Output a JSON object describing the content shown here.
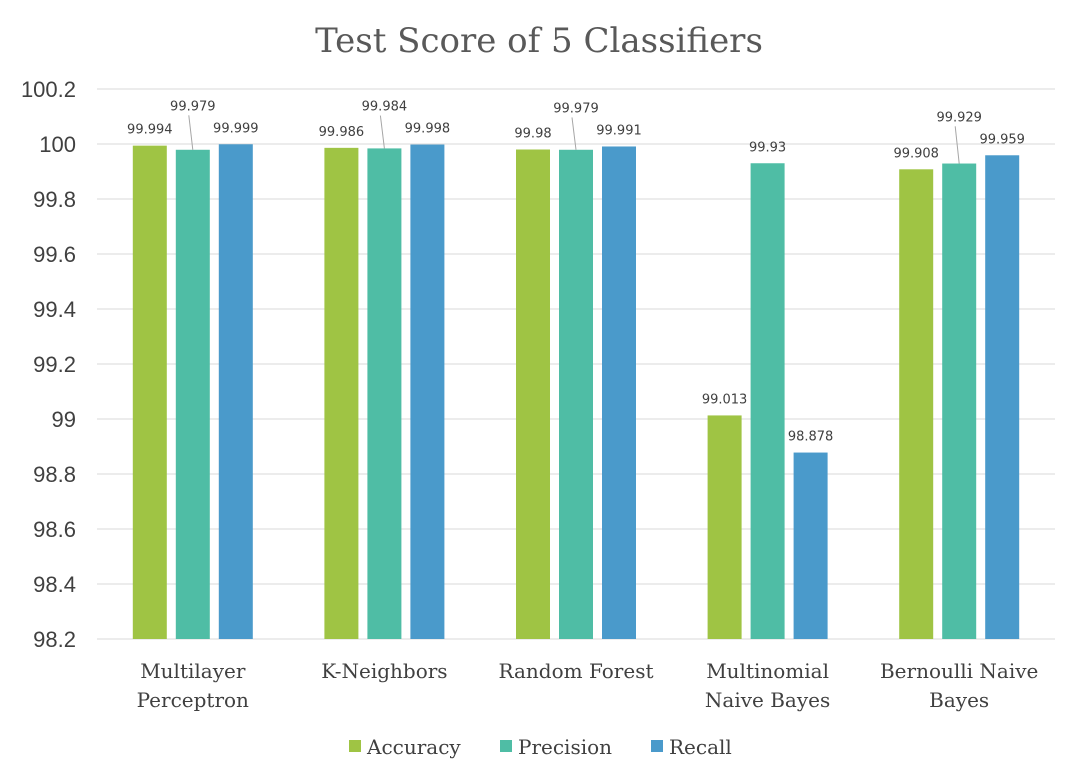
{
  "chart_data": {
    "type": "bar",
    "title": "Test Score of 5 Classifiers",
    "categories": [
      [
        "Multilayer",
        "Perceptron"
      ],
      [
        "K-Neighbors"
      ],
      [
        "Random Forest"
      ],
      [
        "Multinomial",
        "Naive Bayes"
      ],
      [
        "Bernoulli Naive",
        "Bayes"
      ]
    ],
    "series": [
      {
        "name": "Accuracy",
        "color": "#9fc444",
        "values": [
          99.994,
          99.986,
          99.98,
          99.013,
          99.908
        ],
        "labels": [
          "99.994",
          "99.986",
          "99.98",
          "99.013",
          "99.908"
        ]
      },
      {
        "name": "Precision",
        "color": "#4fbda5",
        "values": [
          99.979,
          99.984,
          99.979,
          99.93,
          99.929
        ],
        "labels": [
          "99.979",
          "99.984",
          "99.979",
          "99.93",
          "99.929"
        ]
      },
      {
        "name": "Recall",
        "color": "#4a9acb",
        "values": [
          99.999,
          99.998,
          99.991,
          98.878,
          99.959
        ],
        "labels": [
          "99.999",
          "99.998",
          "99.991",
          "98.878",
          "99.959"
        ]
      }
    ],
    "ylim": [
      98.2,
      100.2
    ],
    "yticks": [
      "98.2",
      "98.4",
      "98.6",
      "98.8",
      "99",
      "99.2",
      "99.4",
      "99.6",
      "99.8",
      "100",
      "100.2"
    ],
    "grid": true,
    "legend_position": "bottom"
  }
}
